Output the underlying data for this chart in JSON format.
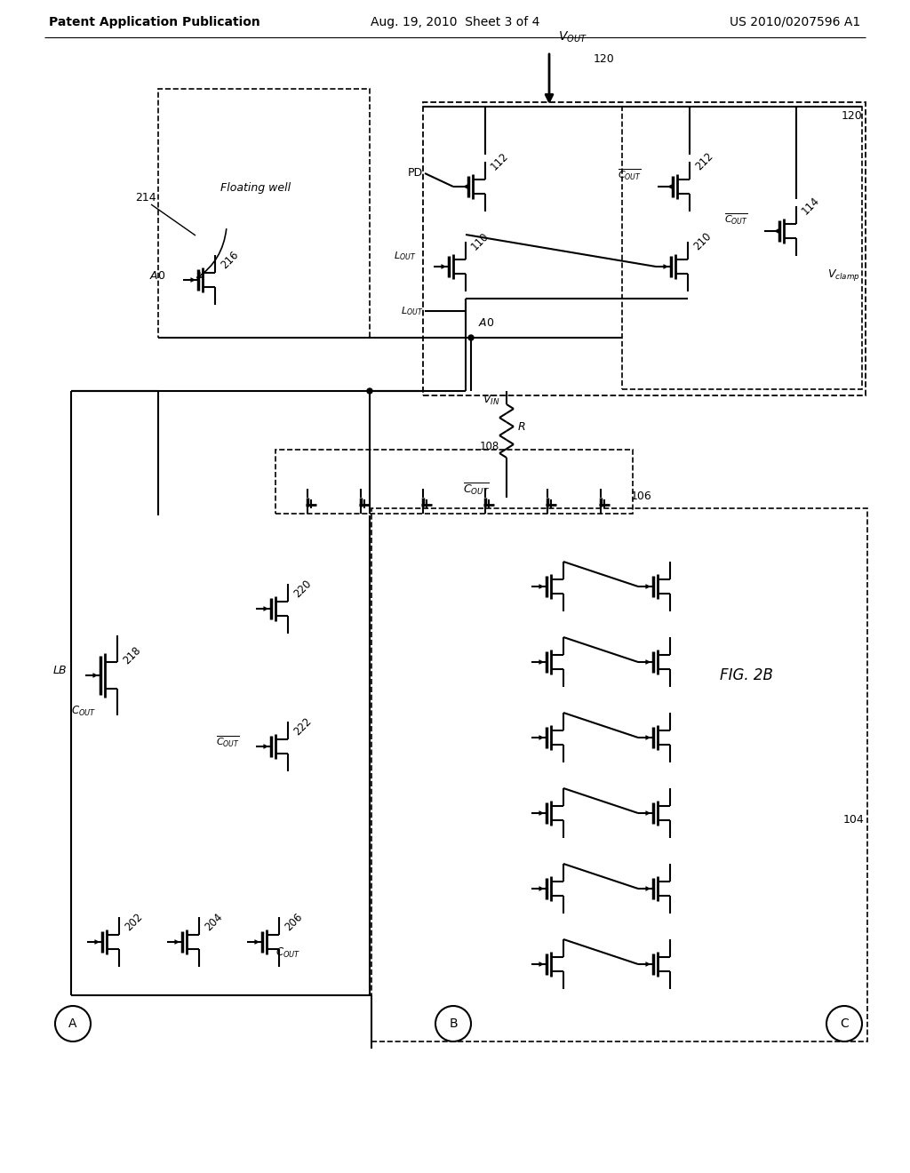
{
  "background_color": "#ffffff",
  "header_left": "Patent Application Publication",
  "header_center": "Aug. 19, 2010  Sheet 3 of 4",
  "header_right": "US 2010/0207596 A1",
  "fig_label": "FIG. 2B"
}
